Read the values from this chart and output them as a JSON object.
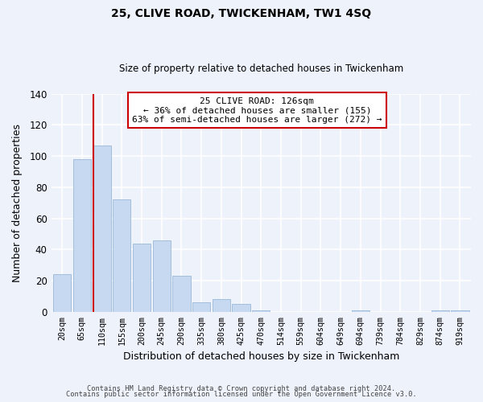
{
  "title_line1": "25, CLIVE ROAD, TWICKENHAM, TW1 4SQ",
  "title_line2": "Size of property relative to detached houses in Twickenham",
  "xlabel": "Distribution of detached houses by size in Twickenham",
  "ylabel": "Number of detached properties",
  "categories": [
    "20sqm",
    "65sqm",
    "110sqm",
    "155sqm",
    "200sqm",
    "245sqm",
    "290sqm",
    "335sqm",
    "380sqm",
    "425sqm",
    "470sqm",
    "514sqm",
    "559sqm",
    "604sqm",
    "649sqm",
    "694sqm",
    "739sqm",
    "784sqm",
    "829sqm",
    "874sqm",
    "919sqm"
  ],
  "values": [
    24,
    98,
    107,
    72,
    44,
    46,
    23,
    6,
    8,
    5,
    1,
    0,
    0,
    0,
    0,
    1,
    0,
    0,
    0,
    1,
    1
  ],
  "bar_color": "#c6d9f0",
  "bar_edge_color": "#9ab8d8",
  "highlight_line_color": "#cc0000",
  "annotation_title": "25 CLIVE ROAD: 126sqm",
  "annotation_line1": "← 36% of detached houses are smaller (155)",
  "annotation_line2": "63% of semi-detached houses are larger (272) →",
  "annotation_box_color": "#ffffff",
  "annotation_box_edge": "#cc0000",
  "ylim": [
    0,
    140
  ],
  "yticks": [
    0,
    20,
    40,
    60,
    80,
    100,
    120,
    140
  ],
  "footer_line1": "Contains HM Land Registry data © Crown copyright and database right 2024.",
  "footer_line2": "Contains public sector information licensed under the Open Government Licence v3.0.",
  "bg_color": "#eef2fb",
  "grid_color": "#ffffff"
}
